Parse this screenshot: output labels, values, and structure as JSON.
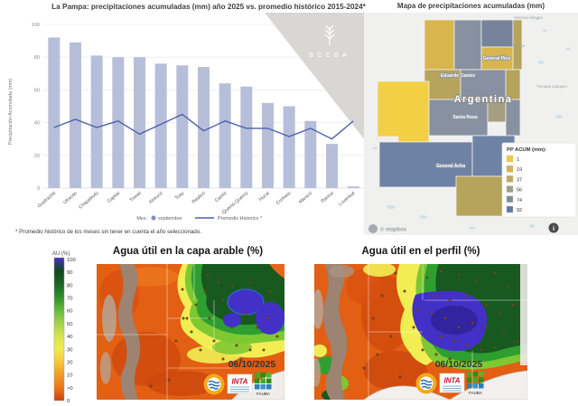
{
  "chart": {
    "title": "La Pampa: precipitaciones acumuladas (mm) año 2025 vs. promedio histórico 2015-2024*",
    "ylabel": "Precipitación Acumulada (mm)",
    "legend": {
      "mes_label": "Mes:",
      "series1": "septiembre",
      "series2": "Promedio Historico *"
    },
    "footnote": "* Promedio histórico de los meses sin tener en cuenta el año seleccionado.",
    "watermark": "BCCBA",
    "colors": {
      "bar": "#b7bed9",
      "line": "#4e61aa"
    }
  },
  "chart_data": [
    {
      "type": "bar",
      "title": "La Pampa: precipitaciones acumuladas (mm) año 2025 vs. promedio histórico 2015-2024*",
      "categories": [
        "Guatraché",
        "Utracán",
        "Chapaleufú",
        "Capital",
        "Trenel",
        "Atreucó",
        "Toay",
        "Realicó",
        "Catriló",
        "Quemú Quemú",
        "Hucal",
        "Conhelo",
        "Maracó",
        "Rancul",
        "Loventué"
      ],
      "series": [
        {
          "name": "septiembre",
          "type": "bar",
          "values": [
            92,
            89,
            81,
            80,
            80,
            76,
            75,
            74,
            64,
            62,
            52,
            50,
            41,
            27,
            1
          ]
        },
        {
          "name": "Promedio Histórico",
          "type": "line",
          "values": [
            37,
            42,
            37,
            41,
            33,
            39,
            45,
            35,
            41,
            36.5,
            36.5,
            31.5,
            36.5,
            30,
            41
          ]
        }
      ],
      "xlabel": "",
      "ylabel": "Precipitación Acumulada (mm)",
      "ylim": [
        0,
        100
      ],
      "yticks": [
        0,
        20,
        40,
        60,
        80,
        100
      ],
      "grid": true,
      "legend_position": "bottom"
    },
    {
      "type": "heatmap",
      "title": "Mapa de precipitaciones acumuladas (mm)",
      "legend_title": "PP ACUM (mm):",
      "legend_values": [
        1,
        19,
        37,
        56,
        74,
        92
      ]
    },
    {
      "type": "heatmap",
      "title": "Agua útil en la capa arable (%)",
      "scale_label": "AU (%)",
      "scale_ticks": [
        "100",
        "90",
        "80",
        "70",
        "60",
        "50",
        "40",
        "30",
        "20",
        "10",
        ">0",
        "0"
      ],
      "date": "06/10/2025"
    },
    {
      "type": "heatmap",
      "title": "Agua útil en el perfil (%)",
      "date": "06/10/2025"
    }
  ],
  "map": {
    "title": "Mapa de precipitaciones acumuladas (mm)",
    "legend_title": "PP ACUM (mm):",
    "legend_items": [
      {
        "value": "1",
        "color": "#f0cd3f"
      },
      {
        "value": "19",
        "color": "#d9b44a"
      },
      {
        "value": "37",
        "color": "#bfa95e"
      },
      {
        "value": "56",
        "color": "#a39d82"
      },
      {
        "value": "74",
        "color": "#838c9d"
      },
      {
        "value": "92",
        "color": "#5f79a2"
      }
    ],
    "labels": {
      "country": "Argentina",
      "cities": [
        "General Pico",
        "Eduardo Castex",
        "Santa Rosa",
        "General Acha"
      ],
      "outside": [
        "General Villegas",
        "América",
        "Trenque Lauquen"
      ]
    },
    "attribution": "© mapbox",
    "info_glyph": "i"
  },
  "soil": {
    "scale_title": "AU (%)",
    "scale_ticks": [
      "100",
      "90",
      "80",
      "70",
      "60",
      "50",
      "40",
      "30",
      "20",
      "10",
      ">0",
      "0"
    ],
    "scale_colors": [
      "#4631c8",
      "#0f4a1a",
      "#1a6424",
      "#2e8f2c",
      "#62b93c",
      "#9ed04b",
      "#d6e44f",
      "#f2ea52",
      "#f6c93a",
      "#f29c27",
      "#ec7518",
      "#c8430e"
    ],
    "maps": [
      {
        "title": "Agua útil en la capa arable (%)",
        "date": "06/10/2025"
      },
      {
        "title": "Agua útil en el perfil (%)",
        "date": "06/10/2025"
      }
    ],
    "logos": [
      "ORA",
      "INTA",
      "FAUBA"
    ]
  }
}
